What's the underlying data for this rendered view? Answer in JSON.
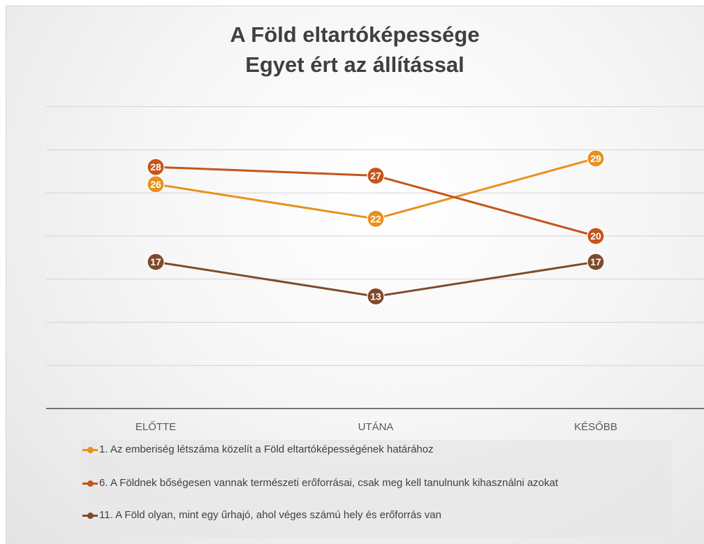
{
  "chart_data": {
    "type": "line",
    "title": [
      "A Föld eltartóképessége",
      "Egyet ért az állítással"
    ],
    "categories": [
      "ELŐTTE",
      "UTÁNA",
      "KÉSŐBB"
    ],
    "ylim": [
      0,
      35
    ],
    "grid": true,
    "legend_position": "bottom",
    "series": [
      {
        "name": "1. Az emberiség létszáma közelít a Föld eltartóképességének határához",
        "values": [
          26,
          22,
          29
        ],
        "color": "#E8901E"
      },
      {
        "name": "6. A Földnek bőségesen vannak természeti erőforrásai, csak meg kell tanulnunk kihasználni azokat",
        "values": [
          28,
          27,
          20
        ],
        "color": "#C5551B"
      },
      {
        "name": "11. A Föld olyan, mint egy űrhajó, ahol véges számú hely és erőforrás van",
        "values": [
          17,
          13,
          17
        ],
        "color": "#7F4A2C"
      }
    ]
  }
}
